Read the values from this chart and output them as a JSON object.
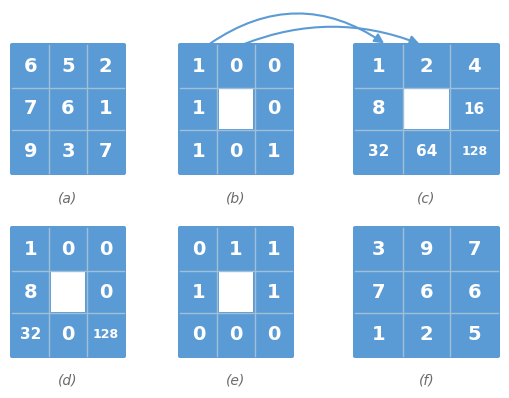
{
  "cell_bg": "#5b9bd5",
  "white_cell": "#ffffff",
  "text_color": "#ffffff",
  "label_color": "#6b6b6b",
  "grid_line_color": "#a0bfd8",
  "arrow_color": "#5b9bd5",
  "grids": {
    "a": {
      "values": [
        [
          "6",
          "5",
          "2"
        ],
        [
          "7",
          "6",
          "1"
        ],
        [
          "9",
          "3",
          "7"
        ]
      ],
      "white_cells": [],
      "label": "(a)"
    },
    "b": {
      "values": [
        [
          "1",
          "0",
          "0"
        ],
        [
          "1",
          "",
          "0"
        ],
        [
          "1",
          "0",
          "1"
        ]
      ],
      "white_cells": [
        [
          1,
          1
        ]
      ],
      "label": "(b)"
    },
    "c": {
      "values": [
        [
          "1",
          "2",
          "4"
        ],
        [
          "8",
          "",
          "16"
        ],
        [
          "32",
          "64",
          "128"
        ]
      ],
      "white_cells": [
        [
          1,
          1
        ]
      ],
      "label": "(c)"
    },
    "d": {
      "values": [
        [
          "1",
          "0",
          "0"
        ],
        [
          "8",
          "",
          "0"
        ],
        [
          "32",
          "0",
          "128"
        ]
      ],
      "white_cells": [
        [
          1,
          1
        ]
      ],
      "label": "(d)"
    },
    "e": {
      "values": [
        [
          "0",
          "1",
          "1"
        ],
        [
          "1",
          "",
          "1"
        ],
        [
          "0",
          "0",
          "0"
        ]
      ],
      "white_cells": [
        [
          1,
          1
        ]
      ],
      "label": "(e)"
    },
    "f": {
      "values": [
        [
          "3",
          "9",
          "7"
        ],
        [
          "7",
          "6",
          "6"
        ],
        [
          "1",
          "2",
          "5"
        ]
      ],
      "white_cells": [],
      "label": "(f)"
    }
  }
}
